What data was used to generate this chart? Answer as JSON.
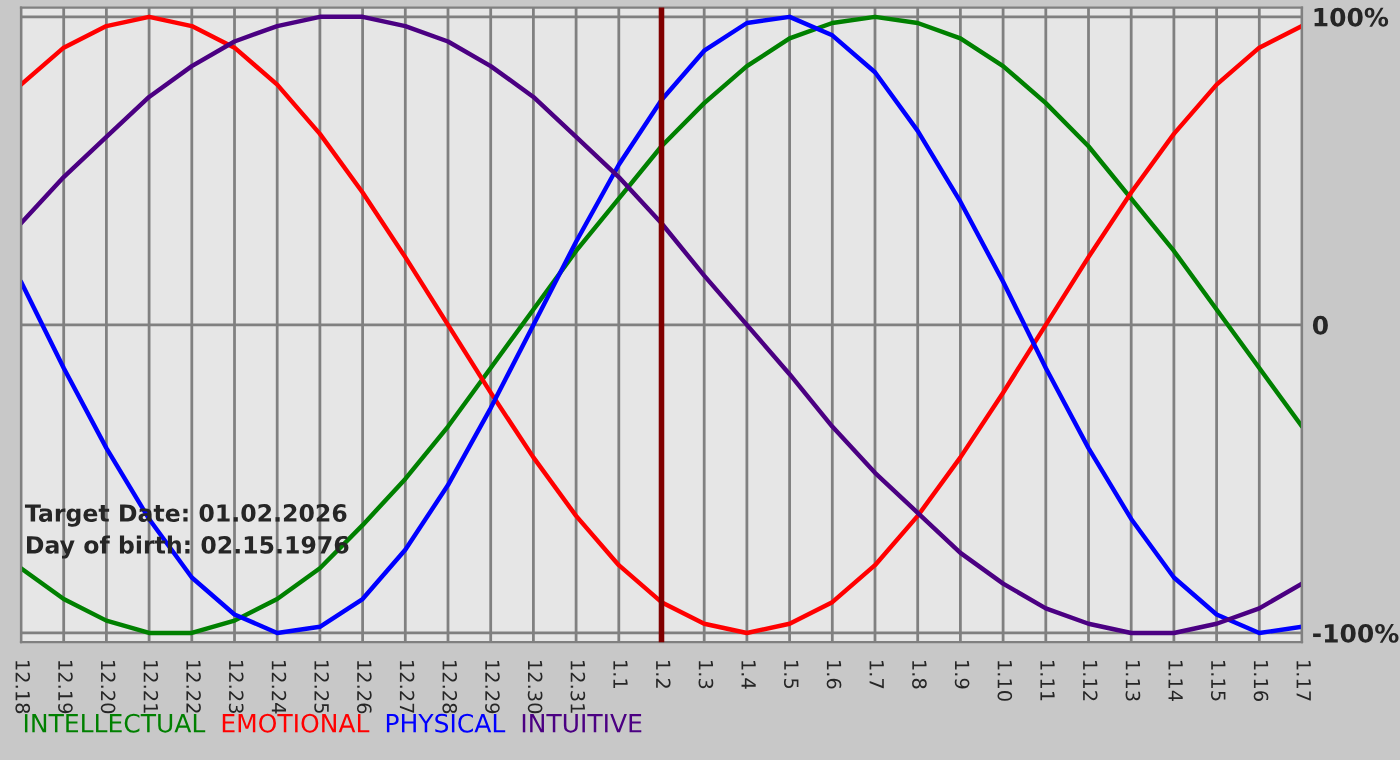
{
  "chart_data": {
    "type": "line",
    "categories": [
      "12.18",
      "12.19",
      "12.20",
      "12.21",
      "12.22",
      "12.23",
      "12.24",
      "12.25",
      "12.26",
      "12.27",
      "12.28",
      "12.29",
      "12.30",
      "12.31",
      "1.1",
      "1.2",
      "1.3",
      "1.4",
      "1.5",
      "1.6",
      "1.7",
      "1.8",
      "1.9",
      "1.10",
      "1.11",
      "1.12",
      "1.13",
      "1.14",
      "1.15",
      "1.16",
      "1.17"
    ],
    "series": [
      {
        "name": "INTELLECTUAL",
        "color": "#008000",
        "values": [
          -79,
          -89,
          -96,
          -100,
          -100,
          -96,
          -89,
          -79,
          -65,
          -50,
          -33,
          -14,
          5,
          24,
          41,
          58,
          72,
          84,
          93,
          98,
          100,
          98,
          93,
          84,
          72,
          58,
          41,
          24,
          5,
          -14,
          -33
        ]
      },
      {
        "name": "EMOTIONAL",
        "color": "#ff0000",
        "values": [
          78,
          90,
          97,
          100,
          97,
          90,
          78,
          62,
          43,
          22,
          0,
          -22,
          -43,
          -62,
          -78,
          -90,
          -97,
          -100,
          -97,
          -90,
          -78,
          -62,
          -43,
          -22,
          0,
          22,
          43,
          62,
          78,
          90,
          97
        ]
      },
      {
        "name": "PHYSICAL",
        "color": "#0000ff",
        "values": [
          14,
          -14,
          -40,
          -63,
          -82,
          -94,
          -100,
          -98,
          -89,
          -73,
          -52,
          -27,
          0,
          27,
          52,
          73,
          89,
          98,
          100,
          94,
          82,
          63,
          40,
          14,
          -14,
          -40,
          -63,
          -82,
          -94,
          -100,
          -98
        ]
      },
      {
        "name": "INTUITIVE",
        "color": "#4b0082",
        "values": [
          33,
          48,
          61,
          74,
          84,
          92,
          97,
          100,
          100,
          97,
          92,
          84,
          74,
          61,
          48,
          33,
          16,
          0,
          -16,
          -33,
          -48,
          -61,
          -74,
          -84,
          -92,
          -97,
          -100,
          -100,
          -97,
          -92,
          -84
        ]
      }
    ],
    "ylim": [
      -103,
      103
    ],
    "yticks": [
      {
        "value": 100,
        "label": "100%"
      },
      0,
      {
        "value": -100,
        "label": "-100%"
      }
    ],
    "ref_lines": [
      {
        "axis": "x",
        "value": "1.2",
        "color": "#800000"
      }
    ],
    "annotations": [
      "Target Date: 01.02.2026",
      "Day of birth: 02.15.1976"
    ],
    "grid": true,
    "legend": "bottom",
    "marker": "none",
    "line_style": "solid"
  }
}
